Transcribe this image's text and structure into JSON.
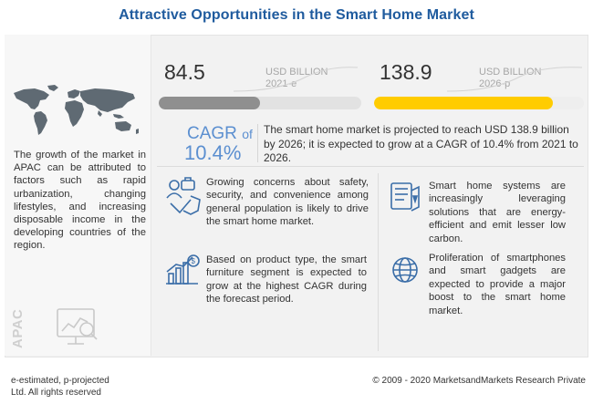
{
  "title": "Attractive Opportunities in the Smart Home Market",
  "region": {
    "label": "APAC",
    "text": "The growth of the market in APAC can be attributed to factors such as rapid urbanization, changing lifestyles, and increasing disposable income in the developing countries of the region."
  },
  "market_2021": {
    "value": "84.5",
    "unit": "USD BILLION",
    "year": "2021-e",
    "fill_fraction": 0.5,
    "bar_color": "#8f8f8f"
  },
  "market_2026": {
    "value": "138.9",
    "unit": "USD BILLION",
    "year": "2026-p",
    "fill_fraction": 0.85,
    "bar_color": "#ffcc00"
  },
  "cagr": {
    "label": "CAGR",
    "of": "of",
    "value": "10.4%",
    "text": "The smart home market is projected to reach USD 138.9 billion by 2026; it is expected to grow at a CAGR of 10.4% from 2021 to 2026."
  },
  "insights": [
    {
      "icon": "security-concerns-icon",
      "text": "Growing concerns about safety, security, and convenience among general population is likely to drive the smart home market."
    },
    {
      "icon": "energy-efficient-icon",
      "text": "Smart home systems are increasingly leveraging solutions that are energy-efficient and emit lesser low carbon."
    },
    {
      "icon": "growth-chart-icon",
      "text": "Based on product type, the smart furniture segment is expected to grow at the highest CAGR during the forecast period."
    },
    {
      "icon": "globe-network-icon",
      "text": "Proliferation of smartphones and smart gadgets are expected to provide a major boost to the smart home market."
    }
  ],
  "footer": {
    "note": "e-estimated, p-projected",
    "rights": "Ltd. All rights reserved",
    "copyright": "© 2009 - 2020 MarketsandMarkets Research Private"
  },
  "colors": {
    "accent_blue": "#5b8fd0",
    "title_blue": "#1f5b9e",
    "yellow": "#ffcc00",
    "grey": "#8f8f8f"
  }
}
